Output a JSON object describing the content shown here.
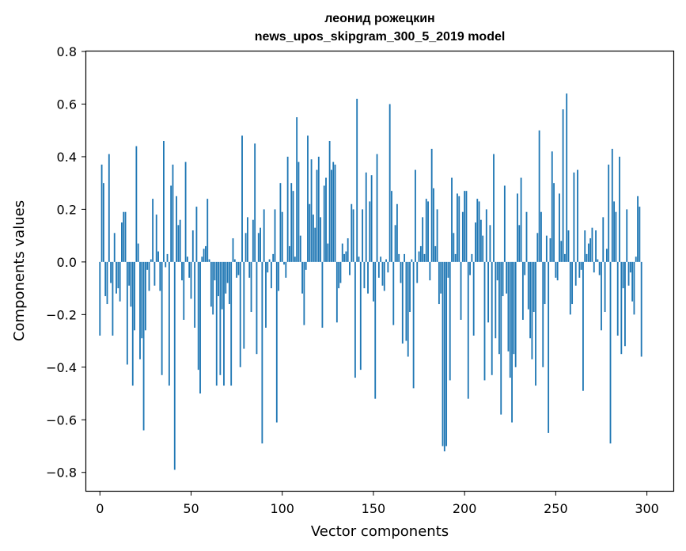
{
  "chart_data": {
    "type": "bar",
    "title_line1": "леонид рожецкин",
    "title_line2": "news_upos_skipgram_300_5_2019 model",
    "xlabel": "Vector components",
    "ylabel": "Components values",
    "xlim": [
      -7.5,
      314.5
    ],
    "ylim": [
      -0.87,
      0.8
    ],
    "xticks": [
      0,
      50,
      100,
      150,
      200,
      250,
      300
    ],
    "yticks": [
      -0.8,
      -0.6,
      -0.4,
      -0.2,
      0.0,
      0.2,
      0.4,
      0.6,
      0.8
    ],
    "ytick_labels": [
      "−0.8",
      "−0.6",
      "−0.4",
      "−0.2",
      "0.0",
      "0.2",
      "0.4",
      "0.6",
      "0.8"
    ],
    "bar_color": "#1f77b4",
    "x_start": 0,
    "values": [
      -0.28,
      0.37,
      0.3,
      -0.13,
      -0.16,
      0.41,
      -0.08,
      -0.28,
      0.11,
      -0.12,
      -0.1,
      -0.15,
      0.15,
      0.19,
      0.19,
      -0.39,
      -0.09,
      -0.17,
      -0.47,
      -0.26,
      0.44,
      0.07,
      -0.37,
      -0.29,
      -0.64,
      -0.26,
      -0.03,
      -0.11,
      0.01,
      0.24,
      -0.09,
      0.18,
      0.04,
      -0.11,
      -0.43,
      0.46,
      -0.02,
      0.03,
      -0.47,
      0.29,
      0.37,
      -0.79,
      0.25,
      0.14,
      0.16,
      -0.07,
      -0.22,
      0.38,
      0.02,
      -0.06,
      -0.14,
      0.12,
      -0.25,
      0.21,
      -0.41,
      -0.5,
      0.02,
      0.05,
      0.06,
      0.24,
      0.01,
      -0.17,
      -0.2,
      -0.07,
      -0.47,
      -0.13,
      -0.43,
      -0.18,
      -0.47,
      -0.12,
      -0.08,
      -0.16,
      -0.47,
      0.09,
      0.01,
      -0.06,
      -0.05,
      -0.4,
      0.48,
      -0.33,
      0.11,
      0.17,
      -0.06,
      -0.19,
      0.16,
      0.45,
      -0.35,
      0.11,
      0.13,
      -0.69,
      0.2,
      -0.25,
      -0.04,
      0.01,
      -0.1,
      0.03,
      0.2,
      -0.61,
      -0.11,
      0.3,
      0.19,
      -0.01,
      -0.06,
      0.4,
      0.06,
      0.3,
      0.27,
      0.02,
      0.55,
      0.38,
      0.1,
      -0.12,
      -0.24,
      -0.03,
      0.48,
      0.22,
      0.39,
      0.18,
      0.13,
      0.35,
      0.4,
      0.17,
      -0.25,
      0.29,
      0.32,
      0.07,
      0.46,
      0.35,
      0.38,
      0.37,
      -0.23,
      -0.1,
      -0.08,
      0.07,
      0.03,
      0.04,
      0.09,
      -0.05,
      0.22,
      0.2,
      -0.44,
      0.62,
      0.02,
      -0.41,
      0.2,
      -0.1,
      0.34,
      -0.12,
      0.23,
      0.33,
      -0.15,
      -0.52,
      0.41,
      -0.06,
      0.02,
      -0.09,
      -0.11,
      0.01,
      -0.04,
      0.6,
      0.27,
      -0.24,
      0.14,
      0.22,
      0.03,
      -0.08,
      -0.31,
      0.03,
      -0.3,
      -0.36,
      -0.19,
      0.01,
      -0.48,
      0.35,
      -0.08,
      0.04,
      0.06,
      0.17,
      0.03,
      0.24,
      0.23,
      -0.07,
      0.43,
      0.28,
      0.06,
      0.2,
      -0.16,
      -0.12,
      -0.7,
      -0.72,
      -0.7,
      -0.06,
      -0.45,
      0.32,
      0.11,
      0.03,
      0.26,
      0.25,
      -0.22,
      0.19,
      0.27,
      0.27,
      -0.52,
      -0.05,
      0.03,
      -0.28,
      0.15,
      0.24,
      0.23,
      0.16,
      0.1,
      -0.45,
      0.2,
      -0.23,
      0.14,
      -0.43,
      0.41,
      -0.29,
      -0.07,
      -0.35,
      -0.58,
      -0.13,
      0.29,
      -0.12,
      -0.34,
      -0.44,
      -0.61,
      -0.35,
      -0.4,
      0.26,
      0.14,
      0.32,
      -0.22,
      -0.05,
      0.19,
      -0.18,
      -0.29,
      -0.37,
      -0.19,
      -0.47,
      0.11,
      0.5,
      0.19,
      -0.4,
      -0.16,
      0.1,
      -0.65,
      0.09,
      0.42,
      0.3,
      -0.06,
      -0.07,
      0.26,
      0.08,
      0.58,
      0.03,
      0.64,
      0.12,
      -0.2,
      -0.16,
      0.34,
      -0.09,
      0.35,
      -0.06,
      -0.03,
      -0.49,
      0.12,
      0.03,
      0.07,
      0.09,
      0.13,
      -0.04,
      0.12,
      0.01,
      -0.05,
      -0.26,
      0.17,
      -0.19,
      0.05,
      0.37,
      -0.69,
      0.43,
      0.23,
      0.19,
      -0.28,
      0.4,
      -0.35,
      -0.1,
      -0.32,
      0.2,
      -0.09,
      -0.04,
      -0.15,
      -0.2,
      0.02,
      0.25,
      0.21,
      -0.36
    ]
  }
}
